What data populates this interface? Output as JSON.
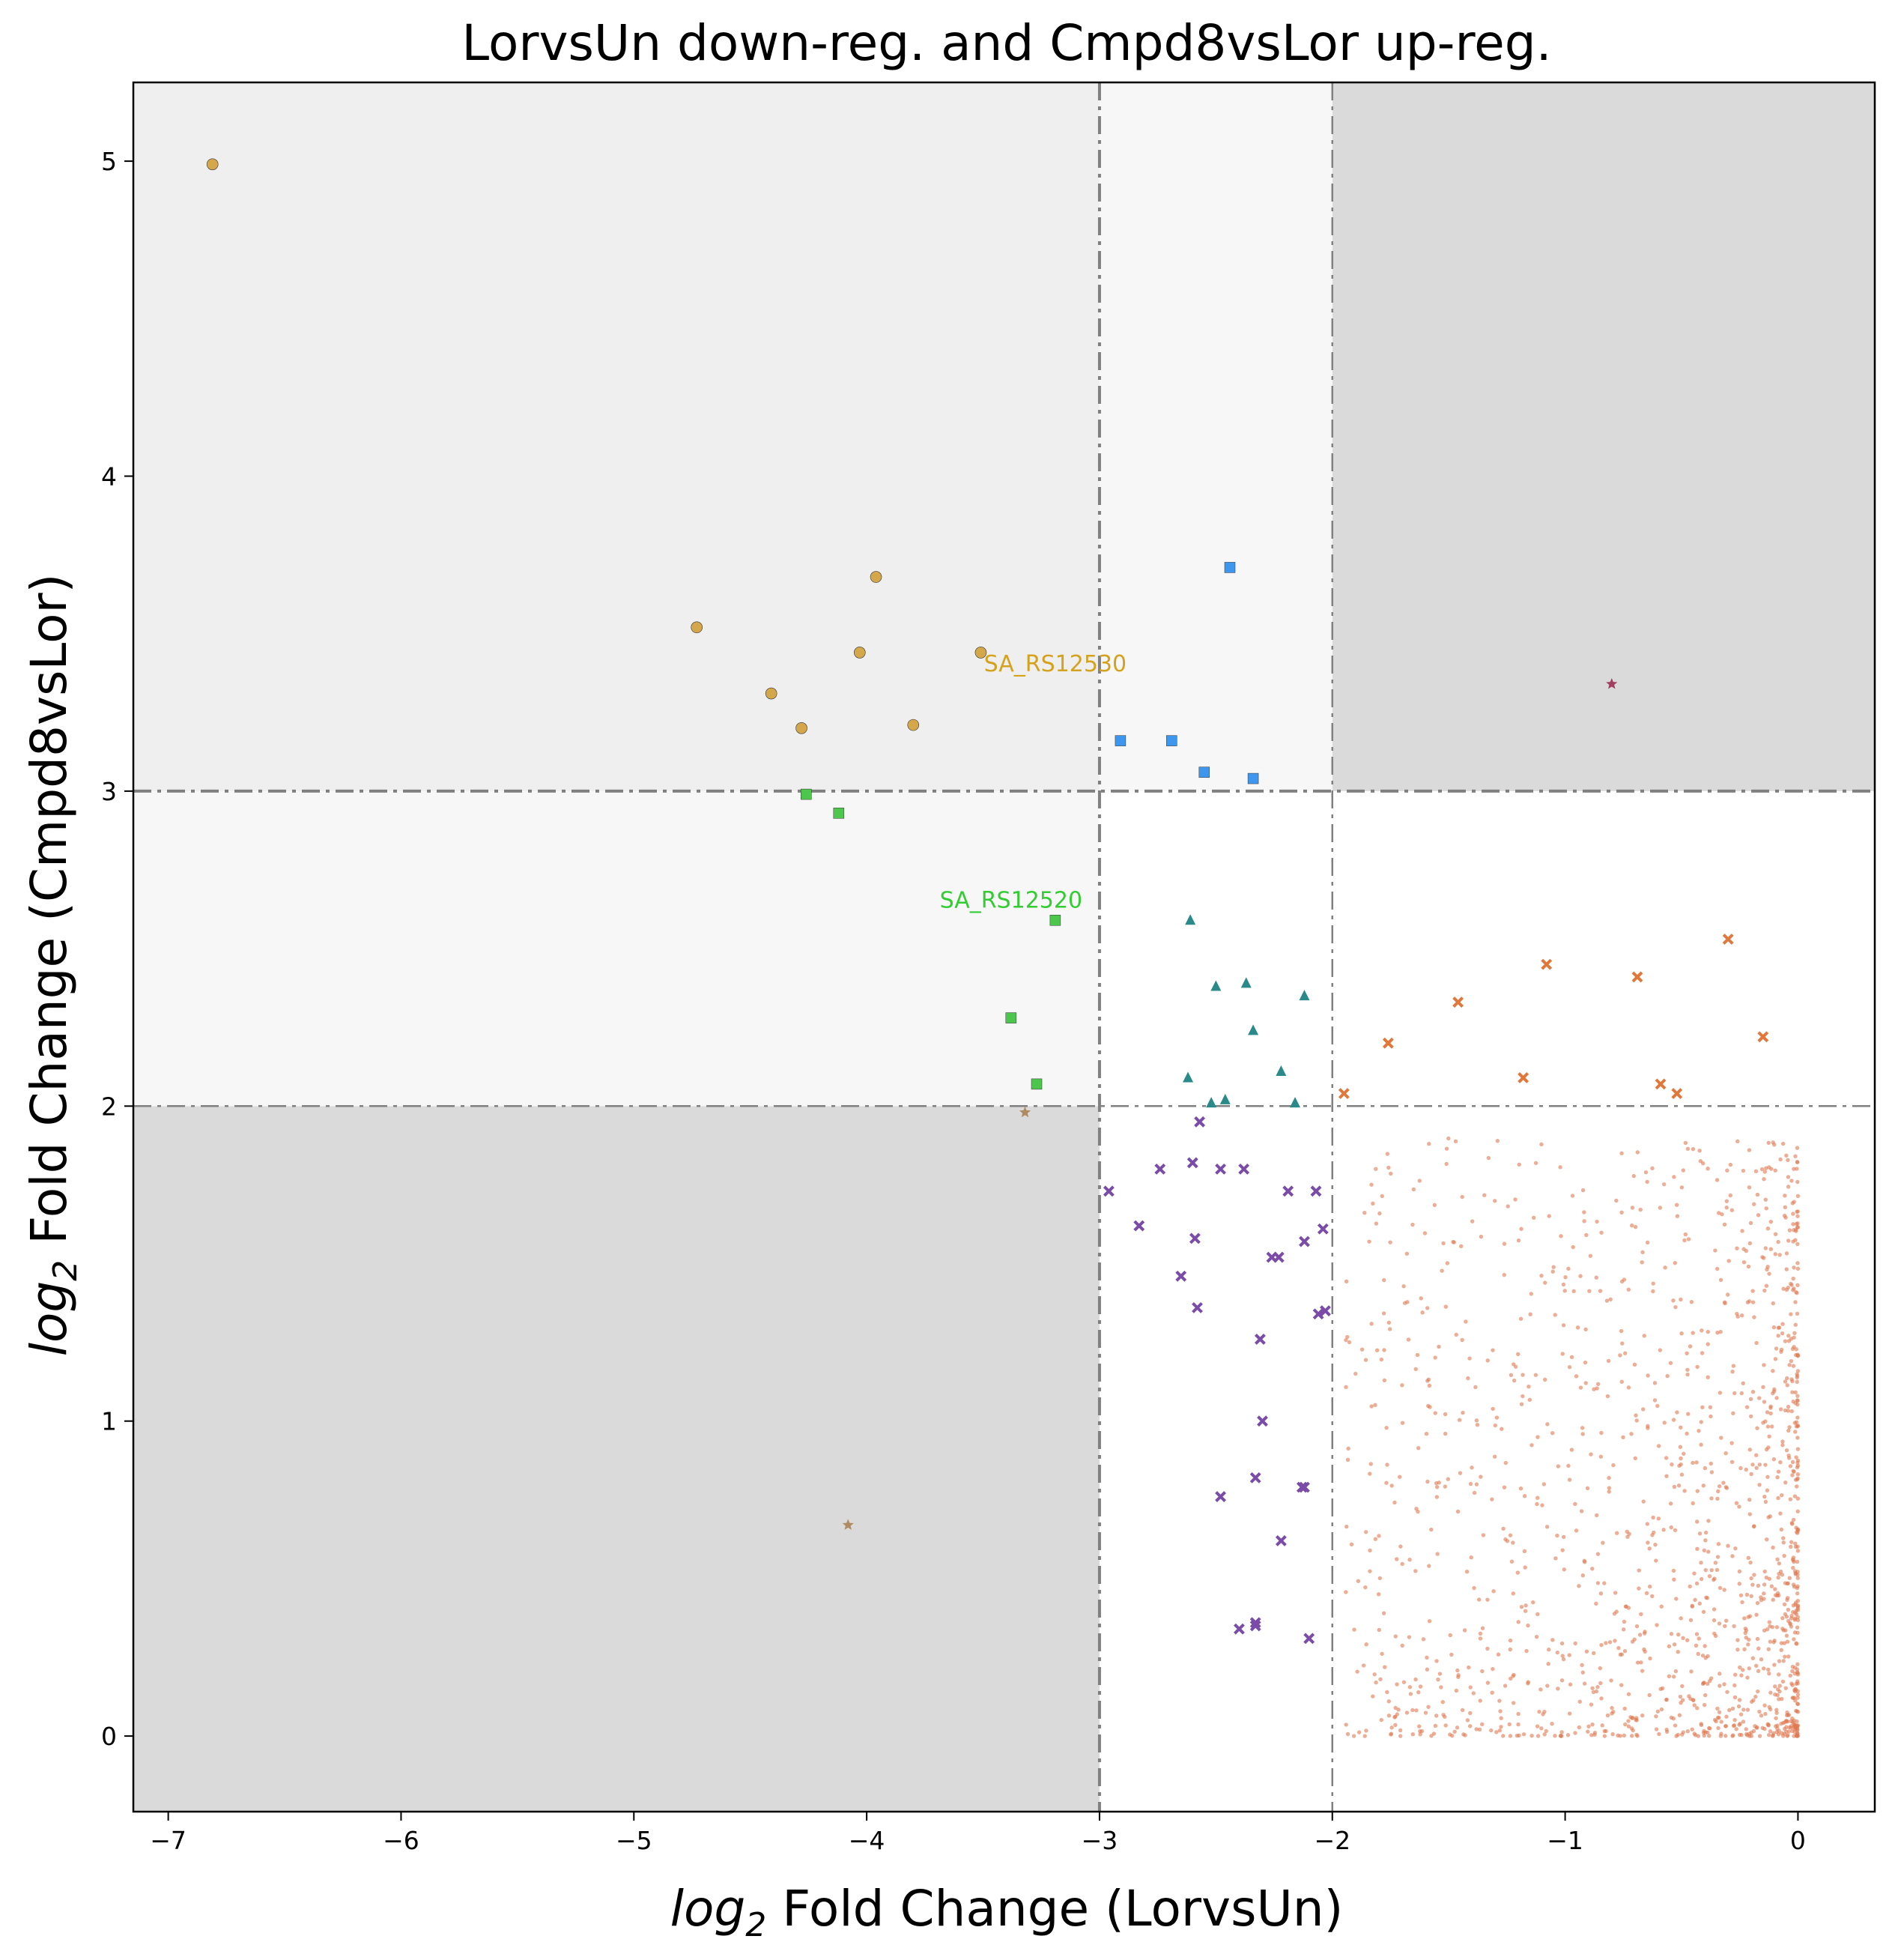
{
  "chart_data": {
    "type": "scatter",
    "title": "LorvsUn down-reg. and Cmpd8vsLor up-reg.",
    "xlabel_var": "log",
    "xlabel_sub": "2",
    "xlabel_rest": " Fold Change (LorvsUn)",
    "ylabel_var": "log",
    "ylabel_sub": "2",
    "ylabel_rest": " Fold Change (Cmpd8vsLor)",
    "xlim": [
      -7.15,
      0.33
    ],
    "ylim": [
      -0.24,
      5.25
    ],
    "xticks": [
      -7,
      -6,
      -5,
      -4,
      -3,
      -2,
      -1,
      0
    ],
    "xtick_labels": [
      "−7",
      "−6",
      "−5",
      "−4",
      "−3",
      "−2",
      "−1",
      "0"
    ],
    "yticks": [
      0,
      1,
      2,
      3,
      4,
      5
    ],
    "ytick_labels": [
      "0",
      "1",
      "2",
      "3",
      "4",
      "5"
    ],
    "grid": false,
    "legend": "none",
    "thresholds": {
      "x": [
        -3,
        -2
      ],
      "y": [
        2,
        3
      ]
    },
    "regions": [
      {
        "x": [
          -7.15,
          -3
        ],
        "y": [
          -0.24,
          2
        ],
        "color": "#dadada"
      },
      {
        "x": [
          -2,
          0.33
        ],
        "y": [
          3,
          5.25
        ],
        "color": "#dadada"
      },
      {
        "x": [
          -7.15,
          -3
        ],
        "y": [
          3,
          5.25
        ],
        "color": "#efefef"
      },
      {
        "x": [
          -7.15,
          -3
        ],
        "y": [
          2,
          3
        ],
        "color": "#f7f7f7"
      },
      {
        "x": [
          -3,
          -2
        ],
        "y": [
          3,
          5.25
        ],
        "color": "#f7f7f7"
      }
    ],
    "annotations": [
      {
        "text": "SA_RS12530",
        "x": -3.19,
        "y": 3.38,
        "color": "#d4a21c"
      },
      {
        "text": "SA_RS12520",
        "x": -3.38,
        "y": 2.63,
        "color": "#33cc33"
      }
    ],
    "series": [
      {
        "marker": "circle",
        "color": "#d4a84a",
        "points": [
          [
            -6.81,
            4.99
          ],
          [
            -4.73,
            3.52
          ],
          [
            -3.96,
            3.68
          ],
          [
            -4.03,
            3.44
          ],
          [
            -4.41,
            3.31
          ],
          [
            -4.28,
            3.2
          ],
          [
            -3.8,
            3.21
          ],
          [
            -3.51,
            3.44
          ]
        ]
      },
      {
        "marker": "square",
        "color": "#3d97ee",
        "points": [
          [
            -2.44,
            3.71
          ],
          [
            -2.91,
            3.16
          ],
          [
            -2.69,
            3.16
          ],
          [
            -2.55,
            3.06
          ],
          [
            -2.34,
            3.04
          ]
        ]
      },
      {
        "marker": "square",
        "color": "#4cc74c",
        "points": [
          [
            -4.26,
            2.99
          ],
          [
            -4.12,
            2.93
          ],
          [
            -3.19,
            2.59
          ],
          [
            -3.38,
            2.28
          ],
          [
            -3.27,
            2.07
          ]
        ]
      },
      {
        "marker": "triangle",
        "color": "#2a8a8a",
        "points": [
          [
            -2.61,
            2.59
          ],
          [
            -2.5,
            2.38
          ],
          [
            -2.37,
            2.39
          ],
          [
            -2.12,
            2.35
          ],
          [
            -2.34,
            2.24
          ],
          [
            -2.22,
            2.11
          ],
          [
            -2.62,
            2.09
          ],
          [
            -2.46,
            2.02
          ],
          [
            -2.52,
            2.01
          ],
          [
            -2.16,
            2.01
          ]
        ]
      },
      {
        "marker": "x",
        "color": "#e0783c",
        "points": [
          [
            -0.3,
            2.53
          ],
          [
            -1.08,
            2.45
          ],
          [
            -0.69,
            2.41
          ],
          [
            -1.46,
            2.33
          ],
          [
            -0.15,
            2.22
          ],
          [
            -1.76,
            2.2
          ],
          [
            -1.18,
            2.09
          ],
          [
            -0.59,
            2.07
          ],
          [
            -0.52,
            2.04
          ],
          [
            -1.95,
            2.04
          ]
        ]
      },
      {
        "marker": "x",
        "color": "#7a4ca8",
        "points": [
          [
            -2.57,
            1.95
          ],
          [
            -2.96,
            1.73
          ],
          [
            -2.6,
            1.82
          ],
          [
            -2.74,
            1.8
          ],
          [
            -2.48,
            1.8
          ],
          [
            -2.38,
            1.8
          ],
          [
            -2.19,
            1.73
          ],
          [
            -2.07,
            1.73
          ],
          [
            -2.83,
            1.62
          ],
          [
            -2.59,
            1.58
          ],
          [
            -2.04,
            1.61
          ],
          [
            -2.12,
            1.57
          ],
          [
            -2.26,
            1.52
          ],
          [
            -2.23,
            1.52
          ],
          [
            -2.65,
            1.46
          ],
          [
            -2.58,
            1.36
          ],
          [
            -2.06,
            1.34
          ],
          [
            -2.03,
            1.35
          ],
          [
            -2.31,
            1.26
          ],
          [
            -2.3,
            1.0
          ],
          [
            -2.12,
            0.79
          ],
          [
            -2.13,
            0.79
          ],
          [
            -2.33,
            0.82
          ],
          [
            -2.48,
            0.76
          ],
          [
            -2.22,
            0.62
          ],
          [
            -2.4,
            0.34
          ],
          [
            -2.33,
            0.35
          ],
          [
            -2.33,
            0.36
          ],
          [
            -2.1,
            0.31
          ]
        ]
      },
      {
        "marker": "star",
        "color": "#b08a60",
        "points": [
          [
            -3.32,
            1.98
          ],
          [
            -4.08,
            0.67
          ]
        ]
      },
      {
        "marker": "star",
        "color": "#a04060",
        "points": [
          [
            -0.8,
            3.34
          ]
        ]
      }
    ],
    "background_cloud": {
      "color": "#e07850",
      "count": 1400,
      "x_range": [
        -1.95,
        0
      ],
      "y_range": [
        0,
        1.9
      ],
      "note_density": "concentrated near x=-0.2, y=0.2"
    }
  }
}
